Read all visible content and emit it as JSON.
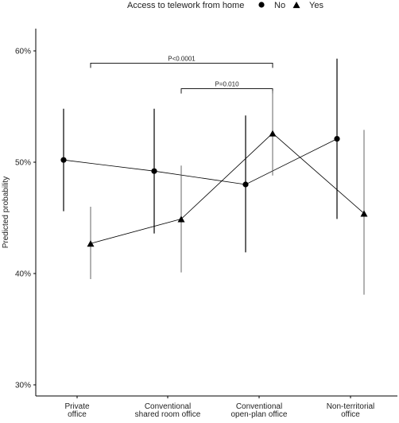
{
  "chart_data": {
    "type": "line",
    "title": "",
    "xlabel": "",
    "ylabel": "Predicted probability",
    "legend": {
      "title": "Access to telework from home",
      "position": "top",
      "entries": [
        {
          "label": "No",
          "marker": "circle"
        },
        {
          "label": "Yes",
          "marker": "triangle"
        }
      ]
    },
    "categories": [
      [
        "Private",
        "office"
      ],
      [
        "Conventional",
        "shared room office"
      ],
      [
        "Conventional",
        "open-plan office"
      ],
      [
        "Non-territorial",
        "office"
      ]
    ],
    "ylim": [
      29,
      62
    ],
    "yticks": [
      30,
      40,
      50,
      60
    ],
    "ytick_labels": [
      "30%",
      "40%",
      "50%",
      "60%"
    ],
    "grid": false,
    "series": [
      {
        "name": "No",
        "marker": "circle",
        "values": [
          50.2,
          49.2,
          48.0,
          52.1
        ],
        "lower": [
          45.6,
          43.6,
          41.9,
          44.9
        ],
        "upper": [
          54.8,
          54.8,
          54.2,
          59.3
        ]
      },
      {
        "name": "Yes",
        "marker": "triangle",
        "values": [
          42.7,
          44.9,
          52.6,
          45.4
        ],
        "lower": [
          39.5,
          40.1,
          48.8,
          38.1
        ],
        "upper": [
          46.0,
          49.7,
          56.4,
          52.9
        ]
      }
    ],
    "annotations": [
      {
        "text": "P<0.0001",
        "from_category": 0,
        "to_category": 2,
        "y": 58.9
      },
      {
        "text": "P=0.010",
        "from_category": 1,
        "to_category": 2,
        "y": 56.6
      }
    ]
  }
}
